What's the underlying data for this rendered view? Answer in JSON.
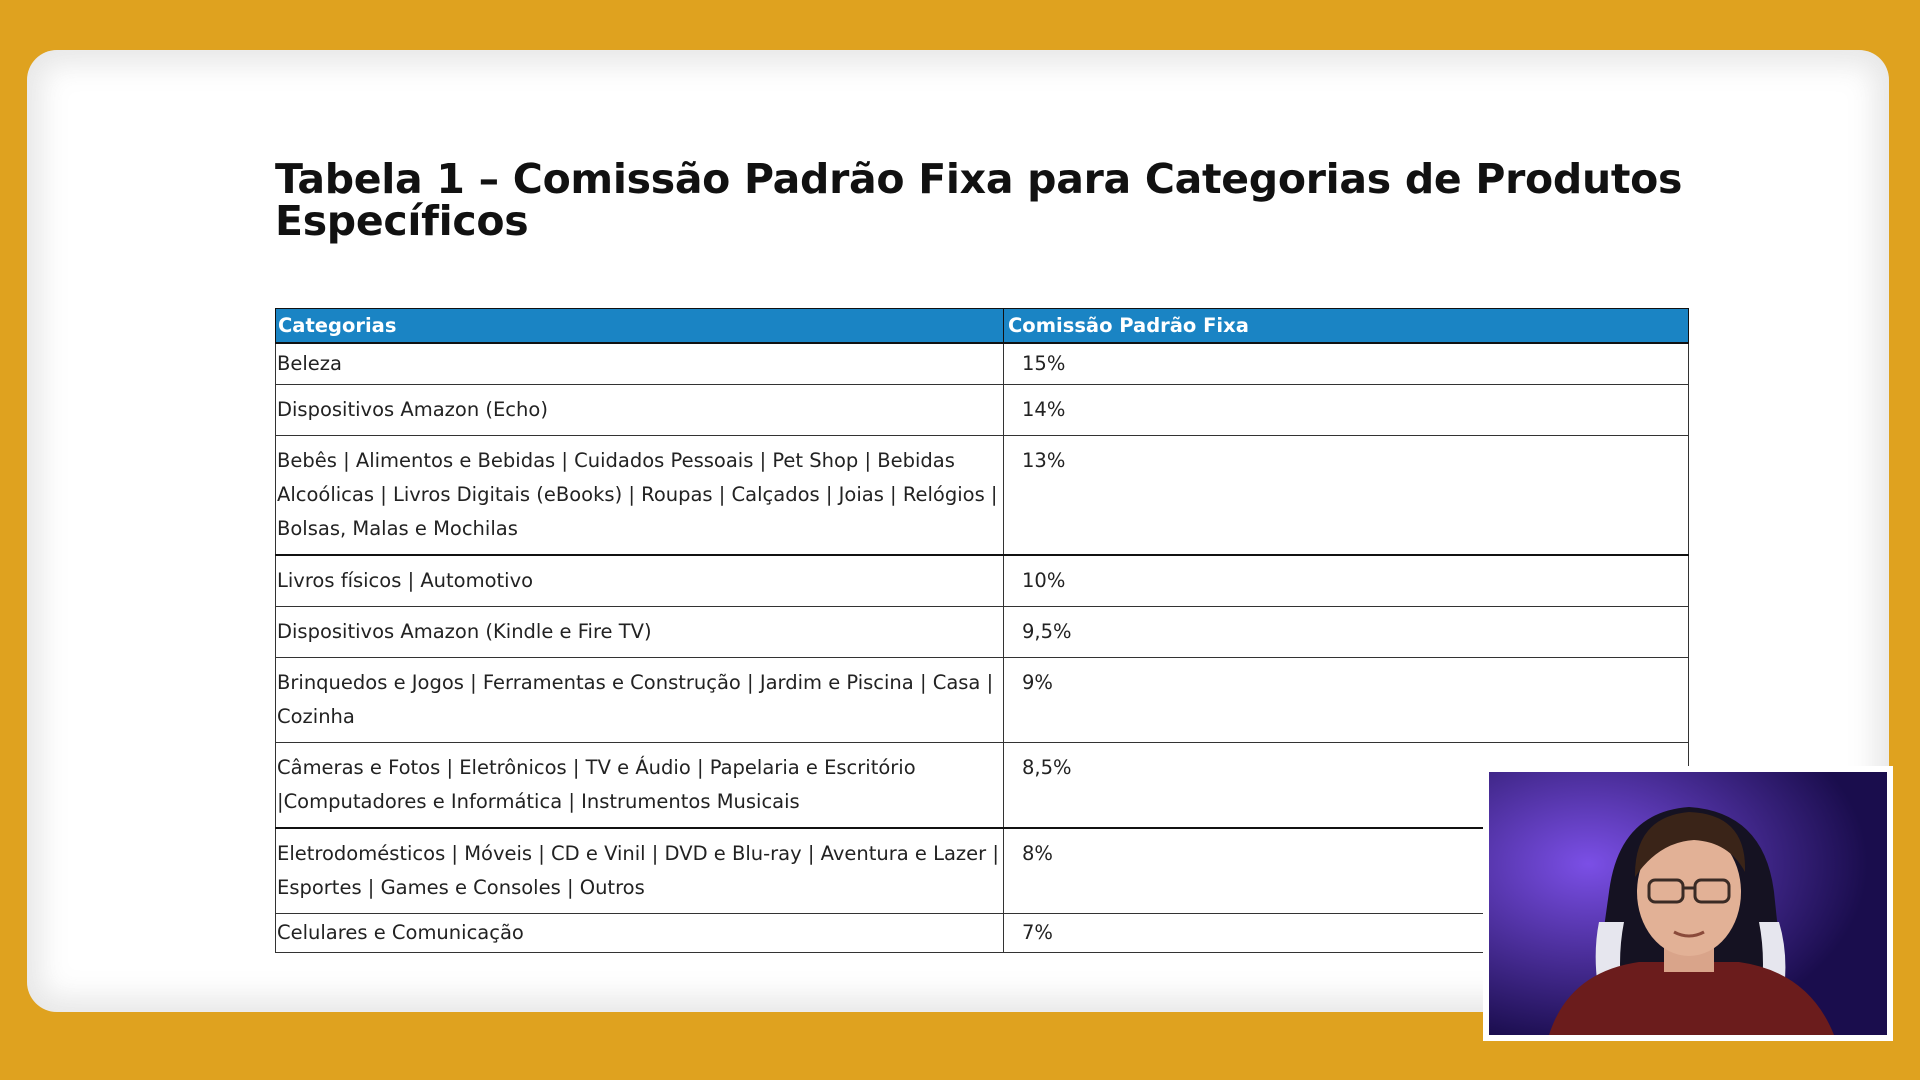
{
  "title": "Tabela 1 – Comissão Padrão Fixa para Categorias de Produtos Específicos",
  "table": {
    "headers": [
      "Categorias",
      "Comissão Padrão Fixa"
    ],
    "rows": [
      {
        "category": "Beleza",
        "commission": "15%"
      },
      {
        "category": "Dispositivos Amazon (Echo)",
        "commission": "14%"
      },
      {
        "category": "Bebês | Alimentos e Bebidas | Cuidados Pessoais | Pet Shop | Bebidas Alcoólicas | Livros Digitais (eBooks) | Roupas | Calçados | Joias | Relógios | Bolsas, Malas e Mochilas",
        "commission": "13%"
      },
      {
        "category": "Livros físicos | Automotivo",
        "commission": "10%"
      },
      {
        "category": "Dispositivos Amazon (Kindle e Fire TV)",
        "commission": "9,5%"
      },
      {
        "category": "Brinquedos e Jogos | Ferramentas e Construção | Jardim e Piscina | Casa | Cozinha",
        "commission": "9%"
      },
      {
        "category": "Câmeras e Fotos | Eletrônicos | TV e Áudio | Papelaria e Escritório |Computadores e Informática | Instrumentos Musicais",
        "commission": "8,5%"
      },
      {
        "category": "Eletrodomésticos | Móveis | CD e Vinil | DVD e Blu-ray | Aventura e Lazer | Esportes | Games e Consoles | Outros",
        "commission": "8%"
      },
      {
        "category": "Celulares e Comunicação",
        "commission": "7%"
      }
    ]
  },
  "colors": {
    "background": "#DFA21F",
    "header": "#1A84C4",
    "webcam_backdrop": "#3a1fa0"
  }
}
